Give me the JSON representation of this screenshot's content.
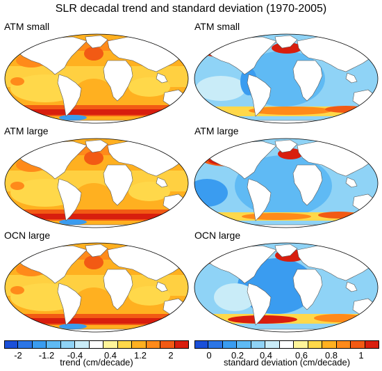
{
  "title": "SLR decadal trend and standard deviation (1970-2005)",
  "panels": [
    {
      "label": "ATM small",
      "field": "trend"
    },
    {
      "label": "ATM small",
      "field": "std"
    },
    {
      "label": "ATM large",
      "field": "trend"
    },
    {
      "label": "ATM large",
      "field": "std"
    },
    {
      "label": "OCN large",
      "field": "trend"
    },
    {
      "label": "OCN large",
      "field": "std"
    }
  ],
  "colorbars": {
    "trend": {
      "label": "trend (cm/decade)",
      "ticks": [
        "-2",
        "-1.2",
        "-0.4",
        "0.4",
        "1.2",
        "2"
      ],
      "colors": [
        "#1a4fd8",
        "#2b75e6",
        "#3a9cf0",
        "#5fbaf4",
        "#8fd3f6",
        "#c9ecf8",
        "#ffffff",
        "#fff59a",
        "#ffd84a",
        "#ffb020",
        "#ff8a1a",
        "#f25a14",
        "#d81e0e"
      ]
    },
    "std": {
      "label": "standard deviation (cm/decade)",
      "ticks": [
        "0",
        "0.2",
        "0.4",
        "0.6",
        "0.8",
        "1"
      ],
      "colors": [
        "#1a4fd8",
        "#2b75e6",
        "#3a9cf0",
        "#5fbaf4",
        "#8fd3f6",
        "#c9ecf8",
        "#ffffff",
        "#fff59a",
        "#ffd84a",
        "#ffb020",
        "#ff8a1a",
        "#f25a14",
        "#d81e0e"
      ]
    }
  }
}
